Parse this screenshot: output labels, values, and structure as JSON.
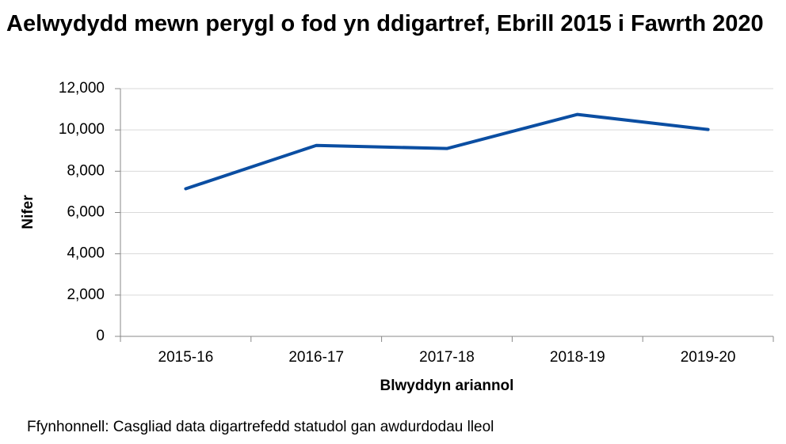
{
  "chart_data": {
    "type": "line",
    "title": "Aelwydydd mewn perygl o fod yn ddigartref, Ebrill 2015 i Fawrth 2020",
    "x_label": "Blwyddyn ariannol",
    "y_label": "Nifer",
    "source": "Ffynhonnell: Casgliad data digartrefedd statudol gan awdurdodau lleol",
    "categories": [
      "2015-16",
      "2016-17",
      "2017-18",
      "2018-19",
      "2019-20"
    ],
    "series": [
      {
        "name": "Aelwydydd",
        "color": "#0b4ea2",
        "values": [
          7150,
          9250,
          9100,
          10750,
          10020
        ]
      }
    ],
    "ylim": [
      0,
      12000
    ],
    "yticks": [
      0,
      {
        "value": 2000,
        "label": "2,000"
      },
      {
        "value": 4000,
        "label": "4,000"
      },
      {
        "value": 6000,
        "label": "6,000"
      },
      {
        "value": 8000,
        "label": "8,000"
      },
      {
        "value": 10000,
        "label": "10,000"
      },
      {
        "value": 12000,
        "label": "12,000"
      }
    ],
    "grid": true
  }
}
